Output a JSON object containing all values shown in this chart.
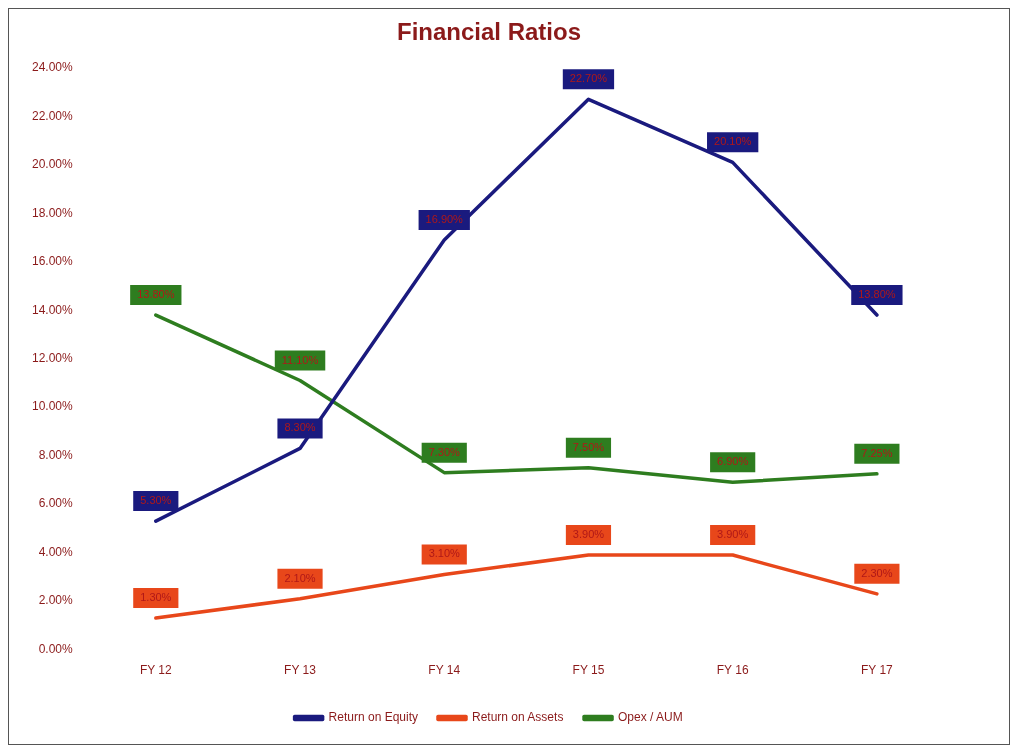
{
  "chart_data": {
    "type": "line",
    "title": "Financial Ratios",
    "categories": [
      "FY 12",
      "FY 13",
      "FY 14",
      "FY 15",
      "FY 16",
      "FY 17"
    ],
    "series": [
      {
        "name": "Return on Equity",
        "color": "#1a1a7e",
        "values": [
          5.3,
          8.3,
          16.9,
          22.7,
          20.1,
          13.8
        ],
        "value_labels": [
          "5.30%",
          "8.30%",
          "16.90%",
          "22.70%",
          "20.10%",
          "13.80%"
        ]
      },
      {
        "name": "Return on Assets",
        "color": "#e8471a",
        "values": [
          1.3,
          2.1,
          3.1,
          3.9,
          3.9,
          2.3
        ],
        "value_labels": [
          "1.30%",
          "2.10%",
          "3.10%",
          "3.90%",
          "3.90%",
          "2.30%"
        ]
      },
      {
        "name": "Opex / AUM",
        "color": "#2e7d1f",
        "values": [
          13.8,
          11.1,
          7.3,
          7.5,
          6.9,
          7.25
        ],
        "value_labels": [
          "13.80%",
          "11.10%",
          "7.30%",
          "7.50%",
          "6.90%",
          "7.25%"
        ]
      }
    ],
    "ylim": [
      0,
      24
    ],
    "yticks": [
      {
        "value": 0,
        "label": "0.00%"
      },
      {
        "value": 2,
        "label": "2.00%"
      },
      {
        "value": 4,
        "label": "4.00%"
      },
      {
        "value": 6,
        "label": "6.00%"
      },
      {
        "value": 8,
        "label": "8.00%"
      },
      {
        "value": 10,
        "label": "10.00%"
      },
      {
        "value": 12,
        "label": "12.00%"
      },
      {
        "value": 14,
        "label": "14.00%"
      },
      {
        "value": 16,
        "label": "16.00%"
      },
      {
        "value": 18,
        "label": "18.00%"
      },
      {
        "value": 20,
        "label": "20.00%"
      },
      {
        "value": 22,
        "label": "22.00%"
      },
      {
        "value": 24,
        "label": "24.00%"
      }
    ],
    "legend": "bottom",
    "grid": false,
    "marker": "none",
    "line_style": "solid"
  }
}
